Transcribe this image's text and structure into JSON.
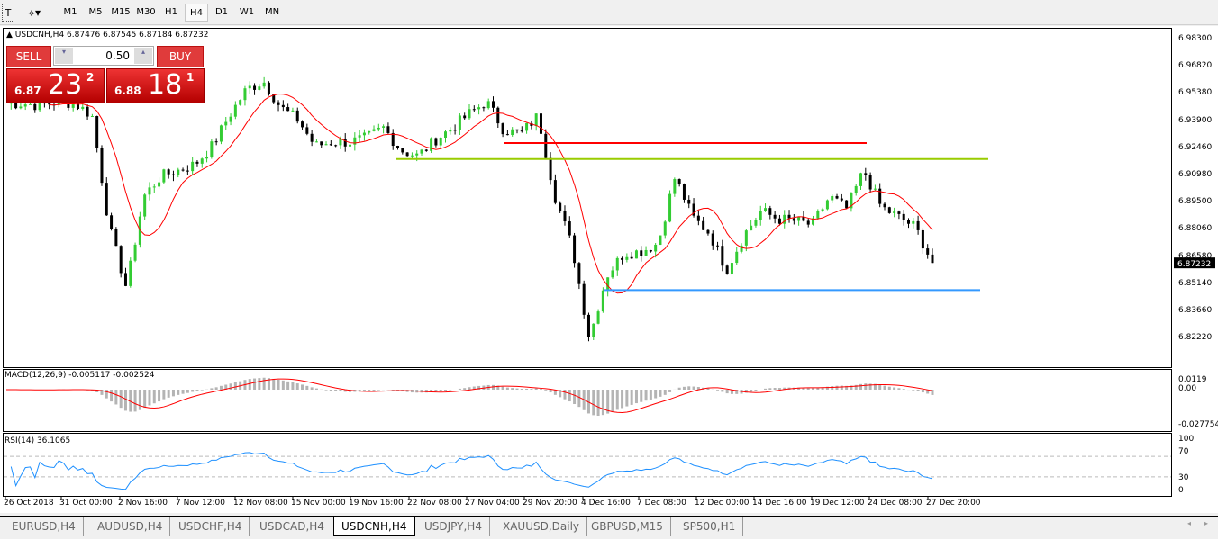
{
  "toolbar": {
    "timeframes": [
      "M1",
      "M5",
      "M15",
      "M30",
      "H1",
      "H4",
      "D1",
      "W1",
      "MN"
    ],
    "active": "H4",
    "text_tool_icon": "text-tool-icon",
    "draw_tool_icon": "drawing-tools-icon"
  },
  "chart": {
    "header": "USDCNH,H4  6.87476 6.87545 6.87184 6.87232",
    "symbol": "USDCNH",
    "timeframe": "H4",
    "ohlc": [
      6.87476,
      6.87545,
      6.87184,
      6.87232
    ],
    "current_price": "6.87232"
  },
  "trade": {
    "sell_label": "SELL",
    "buy_label": "BUY",
    "volume": "0.50",
    "sell": {
      "small": "6.87",
      "big": "23",
      "sup": "2"
    },
    "buy": {
      "small": "6.88",
      "big": "18",
      "sup": "1"
    }
  },
  "price_axis": [
    "6.98300",
    "6.96820",
    "6.95380",
    "6.93900",
    "6.92460",
    "6.90980",
    "6.89500",
    "6.88060",
    "6.86580",
    "6.85140",
    "6.83660",
    "6.82220"
  ],
  "macd": {
    "label": "MACD(12,26,9) -0.005117 -0.002524",
    "axis": [
      "0.0119",
      "0.00",
      "-0.027754"
    ]
  },
  "rsi": {
    "label": "RSI(14) 36.1065",
    "axis": [
      "100",
      "70",
      "30",
      "0"
    ]
  },
  "time_axis": [
    "26 Oct 2018",
    "31 Oct 00:00",
    "2 Nov 16:00",
    "7 Nov 12:00",
    "12 Nov 08:00",
    "15 Nov 00:00",
    "19 Nov 16:00",
    "22 Nov 08:00",
    "27 Nov 04:00",
    "29 Nov 20:00",
    "4 Dec 16:00",
    "7 Dec 08:00",
    "12 Dec 00:00",
    "14 Dec 16:00",
    "19 Dec 12:00",
    "24 Dec 08:00",
    "27 Dec 20:00"
  ],
  "tabs": [
    "EURUSD,H4",
    "AUDUSD,H4",
    "USDCHF,H4",
    "USDCAD,H4",
    "USDCNH,H4",
    "USDJPY,H4",
    "XAUUSD,Daily",
    "GBPUSD,M15",
    "SP500,H1"
  ],
  "active_tab": "USDCNH,H4",
  "colors": {
    "bull": "#33cc33",
    "bear": "#000000",
    "ma": "#ff0000",
    "macd_hist": "#b4b4b4",
    "macd_signal": "#ff0000",
    "rsi": "#1e90ff",
    "line_red": "#ff0000",
    "line_green": "#99cc00",
    "line_blue": "#3399ff"
  },
  "chart_data": {
    "type": "candlestick",
    "ylim": [
      6.8222,
      6.983
    ],
    "closes": [
      6.951,
      6.951,
      6.95,
      6.952,
      6.951,
      6.945,
      6.89,
      6.86,
      6.905,
      6.915,
      6.918,
      6.921,
      6.93,
      6.945,
      6.958,
      6.962,
      6.949,
      6.943,
      6.93,
      6.932,
      6.932,
      6.934,
      6.939,
      6.928,
      6.925,
      6.933,
      6.939,
      6.946,
      6.952,
      6.938,
      6.936,
      6.945,
      6.905,
      6.88,
      6.835,
      6.866,
      6.877,
      6.878,
      6.882,
      6.915,
      6.895,
      6.887,
      6.869,
      6.886,
      6.898,
      6.894,
      6.893,
      6.891,
      6.905,
      6.899,
      6.918,
      6.9,
      6.895,
      6.89,
      6.8723
    ],
    "horizontal_lines": [
      {
        "price": 6.9315,
        "color": "red"
      },
      {
        "price": 6.9236,
        "color": "green"
      },
      {
        "price": 6.8589,
        "color": "blue"
      }
    ]
  }
}
